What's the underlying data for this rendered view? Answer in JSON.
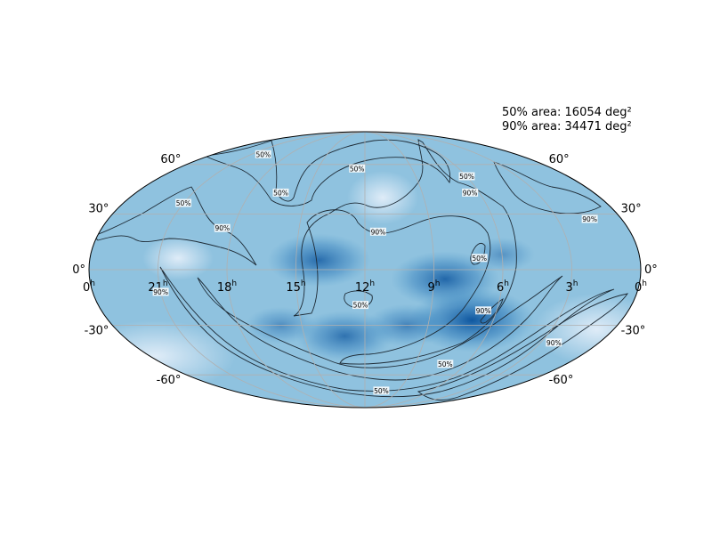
{
  "annotations": {
    "area_50": "50% area: 16054 deg²",
    "area_90": "90% area: 34471 deg²"
  },
  "chart_data": {
    "type": "heatmap",
    "projection": "mollweide",
    "grid": true,
    "ra_ticks": [
      {
        "value": 24,
        "label": "0",
        "sup": "h"
      },
      {
        "value": 21,
        "label": "21",
        "sup": "h"
      },
      {
        "value": 18,
        "label": "18",
        "sup": "h"
      },
      {
        "value": 15,
        "label": "15",
        "sup": "h"
      },
      {
        "value": 12,
        "label": "12",
        "sup": "h"
      },
      {
        "value": 9,
        "label": "9",
        "sup": "h"
      },
      {
        "value": 6,
        "label": "6",
        "sup": "h"
      },
      {
        "value": 3,
        "label": "3",
        "sup": "h"
      },
      {
        "value": 0,
        "label": "0",
        "sup": "h"
      }
    ],
    "dec_ticks": [
      {
        "value": 60,
        "label": "60°"
      },
      {
        "value": 30,
        "label": "30°"
      },
      {
        "value": 0,
        "label": "0°"
      },
      {
        "value": -30,
        "label": "-30°"
      },
      {
        "value": -60,
        "label": "-60°"
      }
    ],
    "contour_labels": [
      {
        "text": "50%",
        "ra": 12.5,
        "dec": 57
      },
      {
        "text": "50%",
        "ra": 16.4,
        "dec": 42
      },
      {
        "text": "50%",
        "ra": 21.0,
        "dec": 36
      },
      {
        "text": "50%",
        "ra": 20.0,
        "dec": 67
      },
      {
        "text": "50%",
        "ra": 6.0,
        "dec": 52
      },
      {
        "text": "50%",
        "ra": 7.0,
        "dec": 6
      },
      {
        "text": "50%",
        "ra": 12.2,
        "dec": -19
      },
      {
        "text": "50%",
        "ra": 7.2,
        "dec": -53
      },
      {
        "text": "50%",
        "ra": 10.5,
        "dec": -72
      },
      {
        "text": "90%",
        "ra": 18.5,
        "dec": 22
      },
      {
        "text": "90%",
        "ra": 11.4,
        "dec": 20
      },
      {
        "text": "90%",
        "ra": 6.5,
        "dec": 42
      },
      {
        "text": "90%",
        "ra": 1.5,
        "dec": 27
      },
      {
        "text": "90%",
        "ra": 6.6,
        "dec": -22
      },
      {
        "text": "90%",
        "ra": 2.3,
        "dec": -40
      },
      {
        "text": "90%",
        "ra": 21.0,
        "dec": -12
      }
    ],
    "probability_hotspots": [
      {
        "ra": 14.0,
        "dec": 5,
        "weight": 0.8
      },
      {
        "ra": 8.5,
        "dec": -5,
        "weight": 0.85
      },
      {
        "ra": 7.0,
        "dec": -27,
        "weight": 1.0
      },
      {
        "ra": 13.0,
        "dec": -36,
        "weight": 0.75
      },
      {
        "ra": 10.0,
        "dec": -30,
        "weight": 0.6
      },
      {
        "ra": 6.0,
        "dec": 8,
        "weight": 0.45
      },
      {
        "ra": 16.0,
        "dec": -30,
        "weight": 0.5
      }
    ],
    "colors": {
      "low": "#dbe8f6",
      "mid": "#82bbdb",
      "high": "#08519c",
      "contour": "#1e2b36",
      "grid": "#b0b0b0"
    }
  }
}
